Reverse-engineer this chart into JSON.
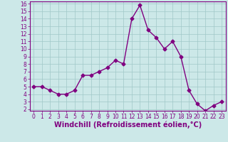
{
  "x": [
    0,
    1,
    2,
    3,
    4,
    5,
    6,
    7,
    8,
    9,
    10,
    11,
    12,
    13,
    14,
    15,
    16,
    17,
    18,
    19,
    20,
    21,
    22,
    23
  ],
  "y": [
    5.0,
    5.0,
    4.5,
    4.0,
    4.0,
    4.5,
    6.5,
    6.5,
    7.0,
    7.5,
    8.5,
    8.0,
    14.0,
    15.8,
    12.5,
    11.5,
    10.0,
    11.0,
    9.0,
    4.5,
    2.7,
    1.8,
    2.5,
    3.0
  ],
  "line_color": "#800080",
  "marker": "D",
  "marker_size": 2.5,
  "bg_color": "#cce8e8",
  "grid_color": "#a0c8c8",
  "xlabel": "Windchill (Refroidissement éolien,°C)",
  "ylabel": "",
  "title": "",
  "xlim_min": -0.5,
  "xlim_max": 23.5,
  "ylim_min": 1.8,
  "ylim_max": 16.3,
  "xticks": [
    0,
    1,
    2,
    3,
    4,
    5,
    6,
    7,
    8,
    9,
    10,
    11,
    12,
    13,
    14,
    15,
    16,
    17,
    18,
    19,
    20,
    21,
    22,
    23
  ],
  "yticks": [
    2,
    3,
    4,
    5,
    6,
    7,
    8,
    9,
    10,
    11,
    12,
    13,
    14,
    15,
    16
  ],
  "font_color": "#800080",
  "tick_fontsize": 5.5,
  "xlabel_fontsize": 7.0,
  "linewidth": 1.0
}
